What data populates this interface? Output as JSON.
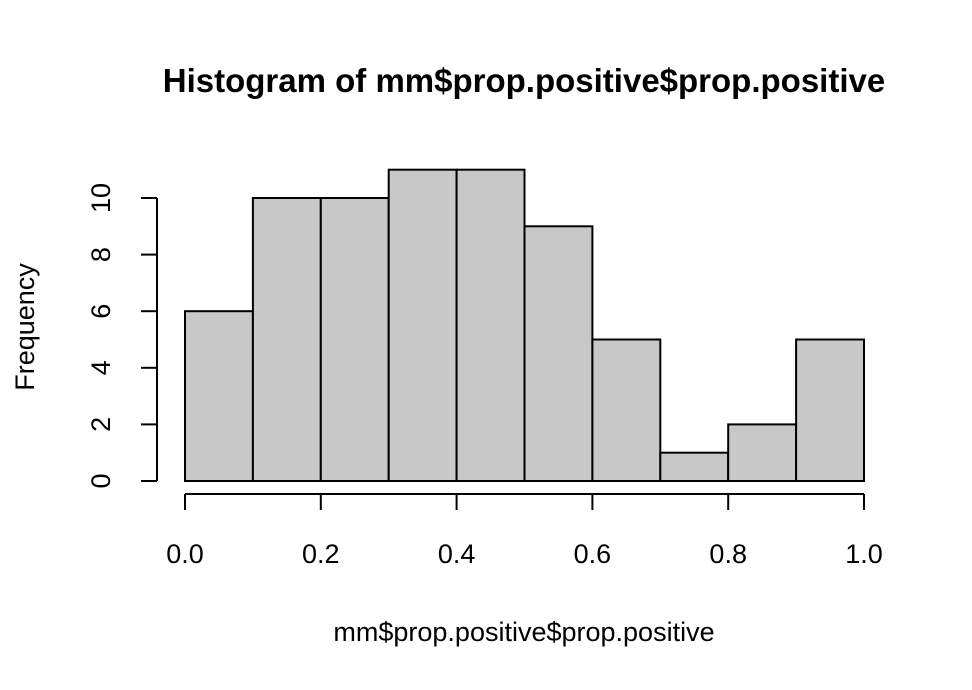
{
  "chart_data": {
    "type": "histogram",
    "title": "Histogram of mm$prop.positive$prop.positive",
    "xlabel": "mm$prop.positive$prop.positive",
    "ylabel": "Frequency",
    "bin_edges": [
      0.0,
      0.1,
      0.2,
      0.3,
      0.4,
      0.5,
      0.6,
      0.7,
      0.8,
      0.9,
      1.0
    ],
    "counts": [
      6,
      10,
      10,
      11,
      11,
      9,
      5,
      1,
      2,
      5
    ],
    "xlim": [
      0.0,
      1.0
    ],
    "ylim": [
      0,
      11
    ],
    "x_ticks": [
      0.0,
      0.2,
      0.4,
      0.6,
      0.8,
      1.0
    ],
    "x_tick_labels": [
      "0.0",
      "0.2",
      "0.4",
      "0.6",
      "0.8",
      "1.0"
    ],
    "y_ticks": [
      0,
      2,
      4,
      6,
      8,
      10
    ],
    "y_tick_labels": [
      "0",
      "2",
      "4",
      "6",
      "8",
      "10"
    ],
    "bar_fill": "#c8c8c8",
    "bar_stroke": "#000000",
    "grid": false,
    "legend": "none"
  }
}
